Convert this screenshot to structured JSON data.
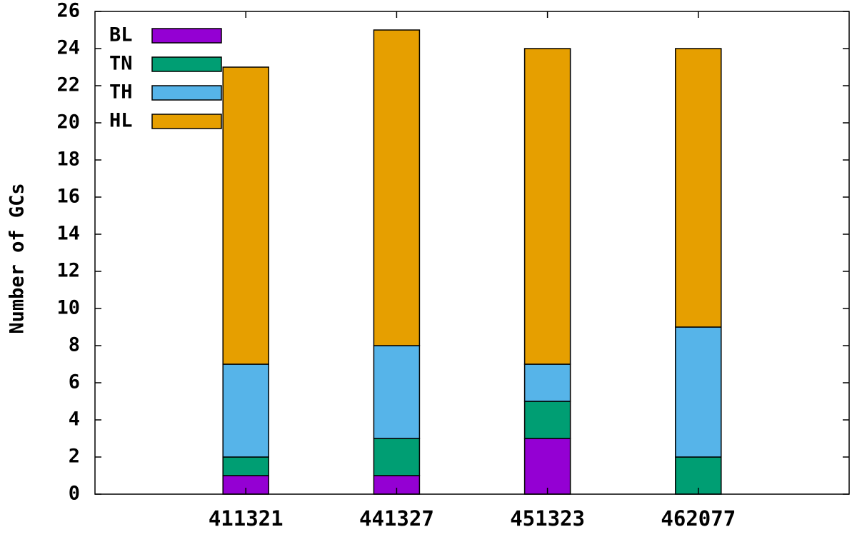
{
  "chart_data": {
    "type": "bar",
    "stacked": true,
    "title": "",
    "xlabel": "",
    "ylabel": "Number of GCs",
    "categories": [
      "411321",
      "441327",
      "451323",
      "462077"
    ],
    "ylim": [
      0,
      26
    ],
    "yticks": [
      0,
      2,
      4,
      6,
      8,
      10,
      12,
      14,
      16,
      18,
      20,
      22,
      24,
      26
    ],
    "grid": false,
    "legend_position": "top-left",
    "series": [
      {
        "name": "BL",
        "color": "#9400d3",
        "values": [
          1,
          1,
          3,
          0
        ]
      },
      {
        "name": "TN",
        "color": "#009e73",
        "values": [
          1,
          2,
          2,
          2
        ]
      },
      {
        "name": "TH",
        "color": "#56b4e9",
        "values": [
          5,
          5,
          2,
          7
        ]
      },
      {
        "name": "HL",
        "color": "#e69f00",
        "values": [
          16,
          17,
          17,
          15
        ]
      }
    ]
  }
}
